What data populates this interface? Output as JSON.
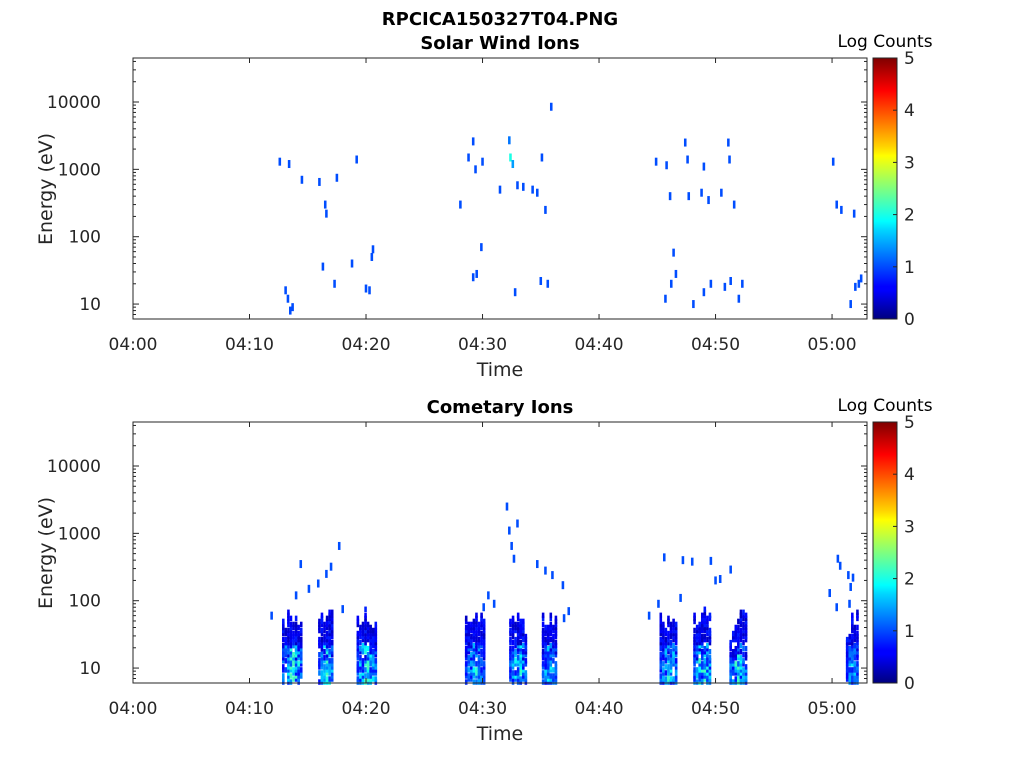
{
  "figure_title": "RPCICA150327T04.PNG",
  "chart_data": [
    {
      "type": "heatmap",
      "title": "Solar Wind Ions",
      "xlabel": "Time",
      "ylabel": "Energy (eV)",
      "x_ticks": [
        "04:00",
        "04:10",
        "04:20",
        "04:30",
        "04:40",
        "04:50",
        "05:00"
      ],
      "y_ticks": [
        "10",
        "100",
        "1000",
        "10000"
      ],
      "y_scale": "log",
      "xlim_minutes_after_04_00": [
        0,
        63
      ],
      "ylim": [
        6,
        45000
      ],
      "colorbar": {
        "label": "Log Counts",
        "ticks": [
          "0",
          "1",
          "2",
          "3",
          "4",
          "5"
        ],
        "range": [
          0,
          5
        ],
        "colormap": "jet"
      },
      "cells": [
        [
          12.6,
          1300,
          1
        ],
        [
          13.4,
          1200,
          1
        ],
        [
          14.5,
          700,
          1
        ],
        [
          16.0,
          650,
          1
        ],
        [
          16.5,
          300,
          1
        ],
        [
          16.6,
          220,
          1
        ],
        [
          17.5,
          750,
          1
        ],
        [
          19.2,
          1400,
          1
        ],
        [
          13.1,
          16,
          1
        ],
        [
          13.3,
          12,
          1
        ],
        [
          13.5,
          8,
          1
        ],
        [
          13.7,
          9,
          1
        ],
        [
          16.3,
          36,
          1
        ],
        [
          17.3,
          20,
          1
        ],
        [
          18.8,
          40,
          1
        ],
        [
          20.0,
          17,
          1
        ],
        [
          20.3,
          16,
          1
        ],
        [
          20.6,
          65,
          1
        ],
        [
          20.5,
          50,
          1
        ],
        [
          28.1,
          300,
          1
        ],
        [
          28.8,
          1500,
          1
        ],
        [
          29.2,
          2600,
          1
        ],
        [
          30.0,
          1300,
          1
        ],
        [
          29.4,
          1000,
          1
        ],
        [
          31.5,
          500,
          1
        ],
        [
          32.3,
          2700,
          1.2
        ],
        [
          32.4,
          1500,
          2
        ],
        [
          32.6,
          1200,
          1.4
        ],
        [
          33.0,
          580,
          1
        ],
        [
          33.5,
          550,
          1
        ],
        [
          34.3,
          500,
          1
        ],
        [
          34.7,
          450,
          1
        ],
        [
          35.1,
          1500,
          1
        ],
        [
          35.4,
          250,
          1
        ],
        [
          35.9,
          8500,
          1
        ],
        [
          29.2,
          25,
          1
        ],
        [
          29.5,
          28,
          1
        ],
        [
          29.9,
          70,
          1
        ],
        [
          32.8,
          15,
          1
        ],
        [
          35.0,
          22,
          1
        ],
        [
          35.6,
          20,
          1
        ],
        [
          44.9,
          1300,
          1
        ],
        [
          45.8,
          1150,
          1
        ],
        [
          46.1,
          400,
          1
        ],
        [
          47.4,
          2500,
          1
        ],
        [
          47.6,
          1400,
          1
        ],
        [
          47.7,
          400,
          1
        ],
        [
          49.0,
          1100,
          1
        ],
        [
          48.8,
          450,
          1
        ],
        [
          49.4,
          350,
          1
        ],
        [
          50.5,
          450,
          1
        ],
        [
          51.1,
          2500,
          1
        ],
        [
          51.2,
          1400,
          1
        ],
        [
          51.6,
          300,
          1
        ],
        [
          45.7,
          12,
          1
        ],
        [
          46.2,
          20,
          1
        ],
        [
          46.6,
          28,
          1
        ],
        [
          46.4,
          58,
          1
        ],
        [
          48.1,
          10,
          1
        ],
        [
          49.0,
          15,
          1
        ],
        [
          49.6,
          20,
          1
        ],
        [
          50.8,
          18,
          1
        ],
        [
          51.3,
          22,
          1
        ],
        [
          52.0,
          12,
          1
        ],
        [
          52.3,
          20,
          1
        ],
        [
          60.1,
          1300,
          1
        ],
        [
          60.4,
          300,
          1
        ],
        [
          60.8,
          250,
          1
        ],
        [
          61.9,
          220,
          1
        ],
        [
          61.6,
          10,
          1
        ],
        [
          62.0,
          18,
          1
        ],
        [
          62.3,
          20,
          1
        ],
        [
          62.5,
          24,
          1
        ]
      ]
    },
    {
      "type": "heatmap",
      "title": "Cometary Ions",
      "xlabel": "Time",
      "ylabel": "Energy (eV)",
      "x_ticks": [
        "04:00",
        "04:10",
        "04:20",
        "04:30",
        "04:40",
        "04:50",
        "05:00"
      ],
      "y_ticks": [
        "10",
        "100",
        "1000",
        "10000"
      ],
      "y_scale": "log",
      "xlim_minutes_after_04_00": [
        0,
        63
      ],
      "ylim": [
        6,
        45000
      ],
      "colorbar": {
        "label": "Log Counts",
        "ticks": [
          "0",
          "1",
          "2",
          "3",
          "4",
          "5"
        ],
        "range": [
          0,
          5
        ],
        "colormap": "jet"
      },
      "bursts": [
        [
          12.9,
          14.6,
          1.6
        ],
        [
          16.0,
          17.3,
          1.4
        ],
        [
          19.3,
          20.9,
          1.5
        ],
        [
          28.6,
          30.2,
          1.1
        ],
        [
          32.4,
          33.8,
          1.3
        ],
        [
          35.2,
          36.4,
          1.3
        ],
        [
          45.3,
          46.8,
          1.4
        ],
        [
          48.2,
          49.7,
          1.5
        ],
        [
          51.3,
          52.7,
          1.6
        ],
        [
          61.3,
          62.3,
          1.0
        ]
      ],
      "cells": [
        [
          14.4,
          350,
          1
        ],
        [
          15.1,
          150,
          1
        ],
        [
          16.6,
          250,
          1
        ],
        [
          17.0,
          320,
          1
        ],
        [
          17.7,
          650,
          1
        ],
        [
          15.9,
          180,
          1
        ],
        [
          11.9,
          60,
          1
        ],
        [
          14.0,
          120,
          1
        ],
        [
          18.0,
          75,
          1
        ],
        [
          32.1,
          2500,
          1
        ],
        [
          32.3,
          1100,
          1
        ],
        [
          32.5,
          650,
          1
        ],
        [
          32.7,
          420,
          1
        ],
        [
          33.0,
          1400,
          1
        ],
        [
          34.7,
          350,
          1
        ],
        [
          35.4,
          280,
          1
        ],
        [
          36.0,
          240,
          1
        ],
        [
          36.9,
          170,
          1
        ],
        [
          31.0,
          90,
          1
        ],
        [
          30.5,
          120,
          1
        ],
        [
          30.1,
          80,
          1
        ],
        [
          37.0,
          55,
          1
        ],
        [
          37.4,
          70,
          1
        ],
        [
          45.6,
          440,
          1
        ],
        [
          47.2,
          400,
          1
        ],
        [
          48.0,
          380,
          1
        ],
        [
          49.6,
          390,
          1
        ],
        [
          50.0,
          200,
          1
        ],
        [
          50.4,
          210,
          1
        ],
        [
          51.3,
          290,
          1
        ],
        [
          44.3,
          60,
          1
        ],
        [
          45.1,
          90,
          1
        ],
        [
          47.0,
          110,
          1
        ],
        [
          60.5,
          420,
          1
        ],
        [
          60.7,
          330,
          1
        ],
        [
          61.4,
          240,
          1
        ],
        [
          61.6,
          160,
          1
        ],
        [
          61.8,
          220,
          1
        ],
        [
          59.8,
          130,
          1
        ],
        [
          60.4,
          80,
          1
        ],
        [
          61.5,
          90,
          1
        ]
      ]
    }
  ]
}
